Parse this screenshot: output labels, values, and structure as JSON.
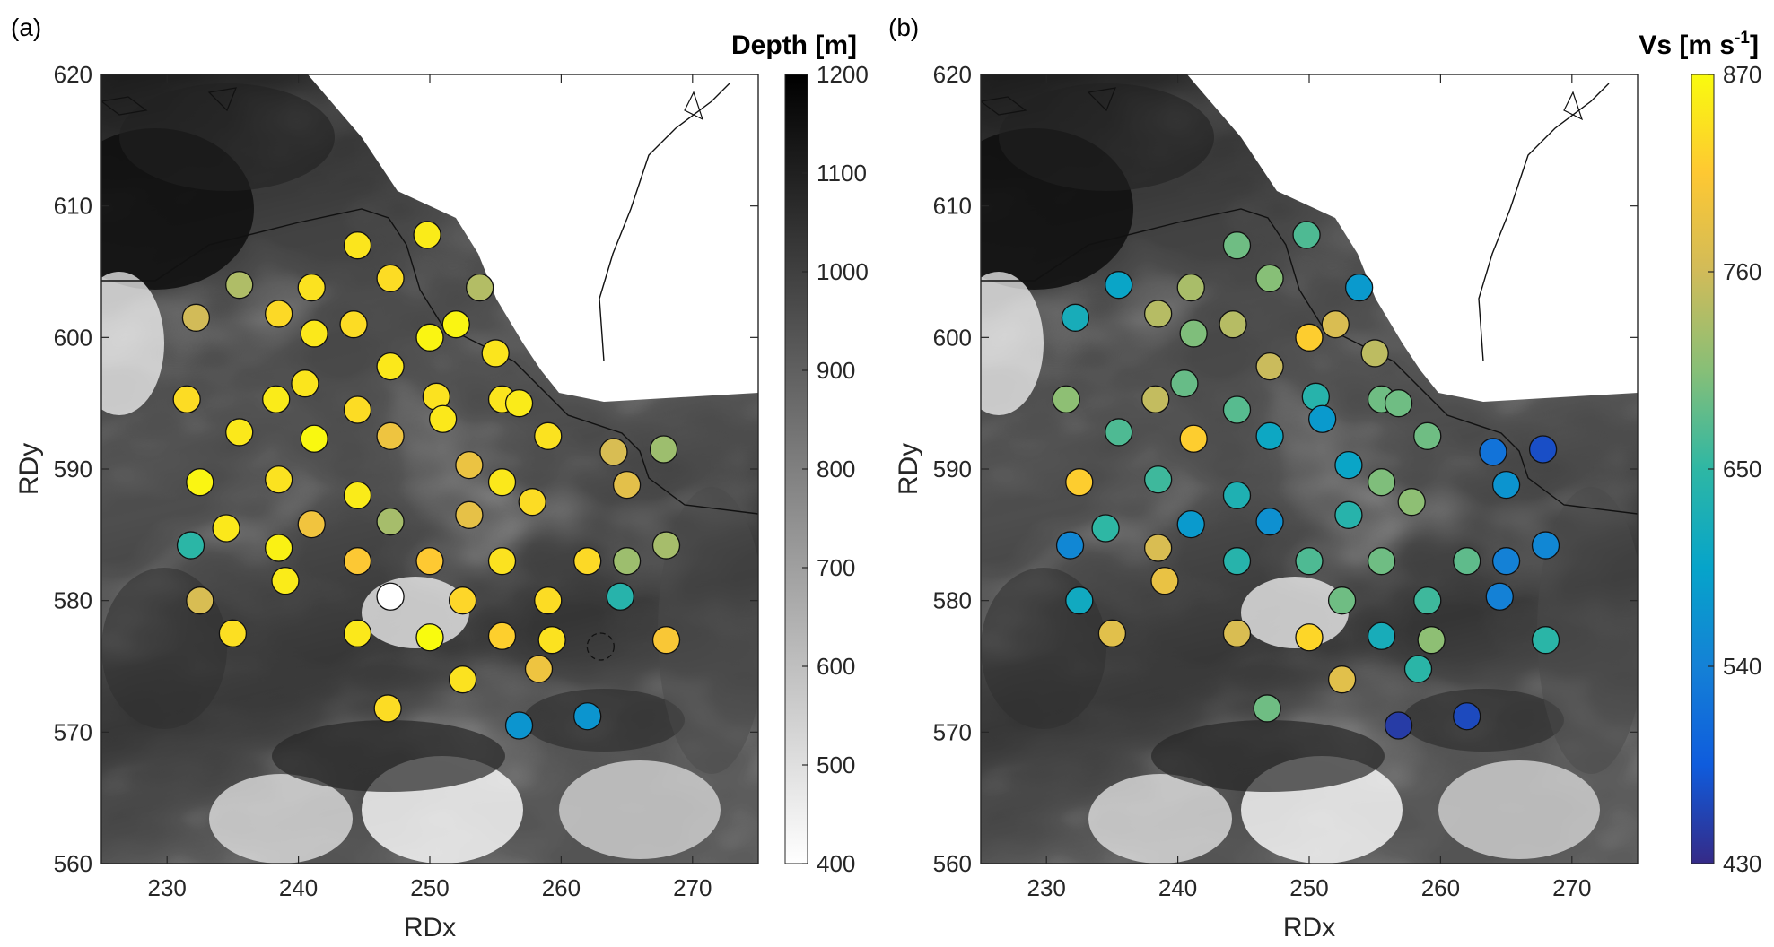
{
  "chart_data": [
    {
      "type": "scatter",
      "panel_label": "(a)",
      "xlabel": "RDx",
      "ylabel": "RDy",
      "xlim": [
        225,
        275
      ],
      "ylim": [
        560,
        620
      ],
      "xticks": [
        "230",
        "240",
        "250",
        "260",
        "270"
      ],
      "yticks": [
        "560",
        "570",
        "580",
        "590",
        "600",
        "610",
        "620"
      ],
      "colorbar": {
        "title": "Depth [m]",
        "range": [
          400,
          1200
        ],
        "colormap": "gray_reversed",
        "ticks": [
          "400",
          "500",
          "600",
          "700",
          "800",
          "900",
          "1000",
          "1100",
          "1200"
        ]
      },
      "marker_colormap": "parula",
      "marker_range": [
        550,
        1200
      ],
      "points": [
        {
          "x": 235.5,
          "y": 604.0,
          "v": 1000
        },
        {
          "x": 232.2,
          "y": 601.5,
          "v": 1040
        },
        {
          "x": 238.5,
          "y": 601.8,
          "v": 1145
        },
        {
          "x": 241.0,
          "y": 603.8,
          "v": 1160
        },
        {
          "x": 244.5,
          "y": 607.0,
          "v": 1165
        },
        {
          "x": 247.0,
          "y": 604.5,
          "v": 1150
        },
        {
          "x": 249.8,
          "y": 607.8,
          "v": 1175
        },
        {
          "x": 253.8,
          "y": 603.8,
          "v": 1005
        },
        {
          "x": 241.2,
          "y": 600.3,
          "v": 1170
        },
        {
          "x": 244.2,
          "y": 601.0,
          "v": 1150
        },
        {
          "x": 250.0,
          "y": 600.0,
          "v": 1190
        },
        {
          "x": 252.0,
          "y": 601.0,
          "v": 1190
        },
        {
          "x": 231.5,
          "y": 595.3,
          "v": 1150
        },
        {
          "x": 238.3,
          "y": 595.3,
          "v": 1175
        },
        {
          "x": 240.5,
          "y": 596.5,
          "v": 1165
        },
        {
          "x": 244.5,
          "y": 594.5,
          "v": 1150
        },
        {
          "x": 247.0,
          "y": 597.8,
          "v": 1170
        },
        {
          "x": 250.5,
          "y": 595.5,
          "v": 1160
        },
        {
          "x": 255.0,
          "y": 598.8,
          "v": 1165
        },
        {
          "x": 255.5,
          "y": 595.3,
          "v": 1165
        },
        {
          "x": 256.8,
          "y": 595.0,
          "v": 1175
        },
        {
          "x": 235.5,
          "y": 592.8,
          "v": 1170
        },
        {
          "x": 241.2,
          "y": 592.3,
          "v": 1195
        },
        {
          "x": 247.0,
          "y": 592.5,
          "v": 1090
        },
        {
          "x": 251.0,
          "y": 593.8,
          "v": 1170
        },
        {
          "x": 259.0,
          "y": 592.5,
          "v": 1160
        },
        {
          "x": 232.5,
          "y": 589.0,
          "v": 1190
        },
        {
          "x": 238.5,
          "y": 589.2,
          "v": 1160
        },
        {
          "x": 244.5,
          "y": 588.0,
          "v": 1175
        },
        {
          "x": 253.0,
          "y": 590.3,
          "v": 1085
        },
        {
          "x": 255.5,
          "y": 589.0,
          "v": 1170
        },
        {
          "x": 257.8,
          "y": 587.5,
          "v": 1150
        },
        {
          "x": 264.0,
          "y": 591.3,
          "v": 1050
        },
        {
          "x": 267.8,
          "y": 591.5,
          "v": 980
        },
        {
          "x": 265.0,
          "y": 588.8,
          "v": 1070
        },
        {
          "x": 231.8,
          "y": 584.2,
          "v": 870
        },
        {
          "x": 234.5,
          "y": 585.5,
          "v": 1170
        },
        {
          "x": 238.5,
          "y": 584.0,
          "v": 1185
        },
        {
          "x": 241.0,
          "y": 585.8,
          "v": 1095
        },
        {
          "x": 247.0,
          "y": 586.0,
          "v": 990
        },
        {
          "x": 253.0,
          "y": 586.5,
          "v": 1075
        },
        {
          "x": 244.5,
          "y": 583.0,
          "v": 1115
        },
        {
          "x": 250.0,
          "y": 583.0,
          "v": 1120
        },
        {
          "x": 255.5,
          "y": 583.0,
          "v": 1160
        },
        {
          "x": 262.0,
          "y": 583.0,
          "v": 1145
        },
        {
          "x": 265.0,
          "y": 583.0,
          "v": 980
        },
        {
          "x": 268.0,
          "y": 584.2,
          "v": 990
        },
        {
          "x": 232.5,
          "y": 580.0,
          "v": 1050
        },
        {
          "x": 239.0,
          "y": 581.5,
          "v": 1175
        },
        {
          "x": 252.5,
          "y": 580.0,
          "v": 1140
        },
        {
          "x": 259.0,
          "y": 580.0,
          "v": 1150
        },
        {
          "x": 264.5,
          "y": 580.3,
          "v": 860
        },
        {
          "x": 235.0,
          "y": 577.5,
          "v": 1155
        },
        {
          "x": 244.5,
          "y": 577.5,
          "v": 1170
        },
        {
          "x": 250.0,
          "y": 577.2,
          "v": 1200
        },
        {
          "x": 255.5,
          "y": 577.3,
          "v": 1130
        },
        {
          "x": 259.3,
          "y": 577.0,
          "v": 1160
        },
        {
          "x": 268.0,
          "y": 577.0,
          "v": 1110
        },
        {
          "x": 252.5,
          "y": 574.0,
          "v": 1160
        },
        {
          "x": 258.3,
          "y": 574.8,
          "v": 1090
        },
        {
          "x": 246.8,
          "y": 571.8,
          "v": 1150
        },
        {
          "x": 256.8,
          "y": 570.5,
          "v": 760
        },
        {
          "x": 262.0,
          "y": 571.2,
          "v": 760
        }
      ],
      "empty_points": [
        {
          "x": 247.0,
          "y": 580.3,
          "style": "solid"
        },
        {
          "x": 263.0,
          "y": 576.5,
          "style": "dashed"
        }
      ]
    },
    {
      "type": "scatter",
      "panel_label": "(b)",
      "xlabel": "RDx",
      "ylabel": "RDy",
      "xlim": [
        225,
        275
      ],
      "ylim": [
        560,
        620
      ],
      "xticks": [
        "230",
        "240",
        "250",
        "260",
        "270"
      ],
      "yticks": [
        "560",
        "570",
        "580",
        "590",
        "600",
        "610",
        "620"
      ],
      "colorbar": {
        "title": "Vs [m s",
        "title_sup": "-1",
        "title_end": "]",
        "range": [
          430,
          870
        ],
        "colormap": "parula",
        "ticks": [
          "430",
          "540",
          "650",
          "760",
          "870"
        ]
      },
      "marker_colormap": "parula",
      "marker_range": [
        430,
        870
      ],
      "points": [
        {
          "x": 235.5,
          "y": 604.0,
          "v": 600
        },
        {
          "x": 232.2,
          "y": 601.5,
          "v": 620
        },
        {
          "x": 238.5,
          "y": 601.8,
          "v": 740
        },
        {
          "x": 241.0,
          "y": 603.8,
          "v": 730
        },
        {
          "x": 244.5,
          "y": 607.0,
          "v": 690
        },
        {
          "x": 247.0,
          "y": 604.5,
          "v": 705
        },
        {
          "x": 249.8,
          "y": 607.8,
          "v": 670
        },
        {
          "x": 253.8,
          "y": 603.8,
          "v": 580
        },
        {
          "x": 241.2,
          "y": 600.3,
          "v": 700
        },
        {
          "x": 244.2,
          "y": 601.0,
          "v": 740
        },
        {
          "x": 250.0,
          "y": 600.0,
          "v": 820
        },
        {
          "x": 252.0,
          "y": 601.0,
          "v": 770
        },
        {
          "x": 231.5,
          "y": 595.3,
          "v": 710
        },
        {
          "x": 238.3,
          "y": 595.3,
          "v": 750
        },
        {
          "x": 240.5,
          "y": 596.5,
          "v": 685
        },
        {
          "x": 244.5,
          "y": 594.5,
          "v": 675
        },
        {
          "x": 247.0,
          "y": 597.8,
          "v": 755
        },
        {
          "x": 250.5,
          "y": 595.5,
          "v": 640
        },
        {
          "x": 255.0,
          "y": 598.8,
          "v": 745
        },
        {
          "x": 255.5,
          "y": 595.3,
          "v": 690
        },
        {
          "x": 256.8,
          "y": 595.0,
          "v": 690
        },
        {
          "x": 235.5,
          "y": 592.8,
          "v": 670
        },
        {
          "x": 241.2,
          "y": 592.3,
          "v": 820
        },
        {
          "x": 247.0,
          "y": 592.5,
          "v": 605
        },
        {
          "x": 251.0,
          "y": 593.8,
          "v": 580
        },
        {
          "x": 259.0,
          "y": 592.5,
          "v": 690
        },
        {
          "x": 232.5,
          "y": 589.0,
          "v": 820
        },
        {
          "x": 238.5,
          "y": 589.2,
          "v": 660
        },
        {
          "x": 244.5,
          "y": 588.0,
          "v": 630
        },
        {
          "x": 253.0,
          "y": 590.3,
          "v": 600
        },
        {
          "x": 255.5,
          "y": 589.0,
          "v": 700
        },
        {
          "x": 257.8,
          "y": 587.5,
          "v": 710
        },
        {
          "x": 264.0,
          "y": 591.3,
          "v": 520
        },
        {
          "x": 267.8,
          "y": 591.5,
          "v": 470
        },
        {
          "x": 265.0,
          "y": 588.8,
          "v": 570
        },
        {
          "x": 231.8,
          "y": 584.2,
          "v": 550
        },
        {
          "x": 234.5,
          "y": 585.5,
          "v": 650
        },
        {
          "x": 238.5,
          "y": 584.0,
          "v": 770
        },
        {
          "x": 241.0,
          "y": 585.8,
          "v": 580
        },
        {
          "x": 247.0,
          "y": 586.0,
          "v": 565
        },
        {
          "x": 253.0,
          "y": 586.5,
          "v": 640
        },
        {
          "x": 244.5,
          "y": 583.0,
          "v": 640
        },
        {
          "x": 250.0,
          "y": 583.0,
          "v": 670
        },
        {
          "x": 255.5,
          "y": 583.0,
          "v": 690
        },
        {
          "x": 262.0,
          "y": 583.0,
          "v": 680
        },
        {
          "x": 265.0,
          "y": 583.0,
          "v": 540
        },
        {
          "x": 268.0,
          "y": 584.2,
          "v": 550
        },
        {
          "x": 232.5,
          "y": 580.0,
          "v": 610
        },
        {
          "x": 239.0,
          "y": 581.5,
          "v": 790
        },
        {
          "x": 252.5,
          "y": 580.0,
          "v": 690
        },
        {
          "x": 259.0,
          "y": 580.0,
          "v": 660
        },
        {
          "x": 264.5,
          "y": 580.3,
          "v": 540
        },
        {
          "x": 235.0,
          "y": 577.5,
          "v": 780
        },
        {
          "x": 244.5,
          "y": 577.5,
          "v": 770
        },
        {
          "x": 250.0,
          "y": 577.2,
          "v": 830
        },
        {
          "x": 255.5,
          "y": 577.3,
          "v": 620
        },
        {
          "x": 259.3,
          "y": 577.0,
          "v": 710
        },
        {
          "x": 268.0,
          "y": 577.0,
          "v": 645
        },
        {
          "x": 252.5,
          "y": 574.0,
          "v": 780
        },
        {
          "x": 258.3,
          "y": 574.8,
          "v": 645
        },
        {
          "x": 246.8,
          "y": 571.8,
          "v": 690
        },
        {
          "x": 256.8,
          "y": 570.5,
          "v": 450
        },
        {
          "x": 262.0,
          "y": 571.2,
          "v": 465
        }
      ],
      "empty_points": []
    }
  ]
}
